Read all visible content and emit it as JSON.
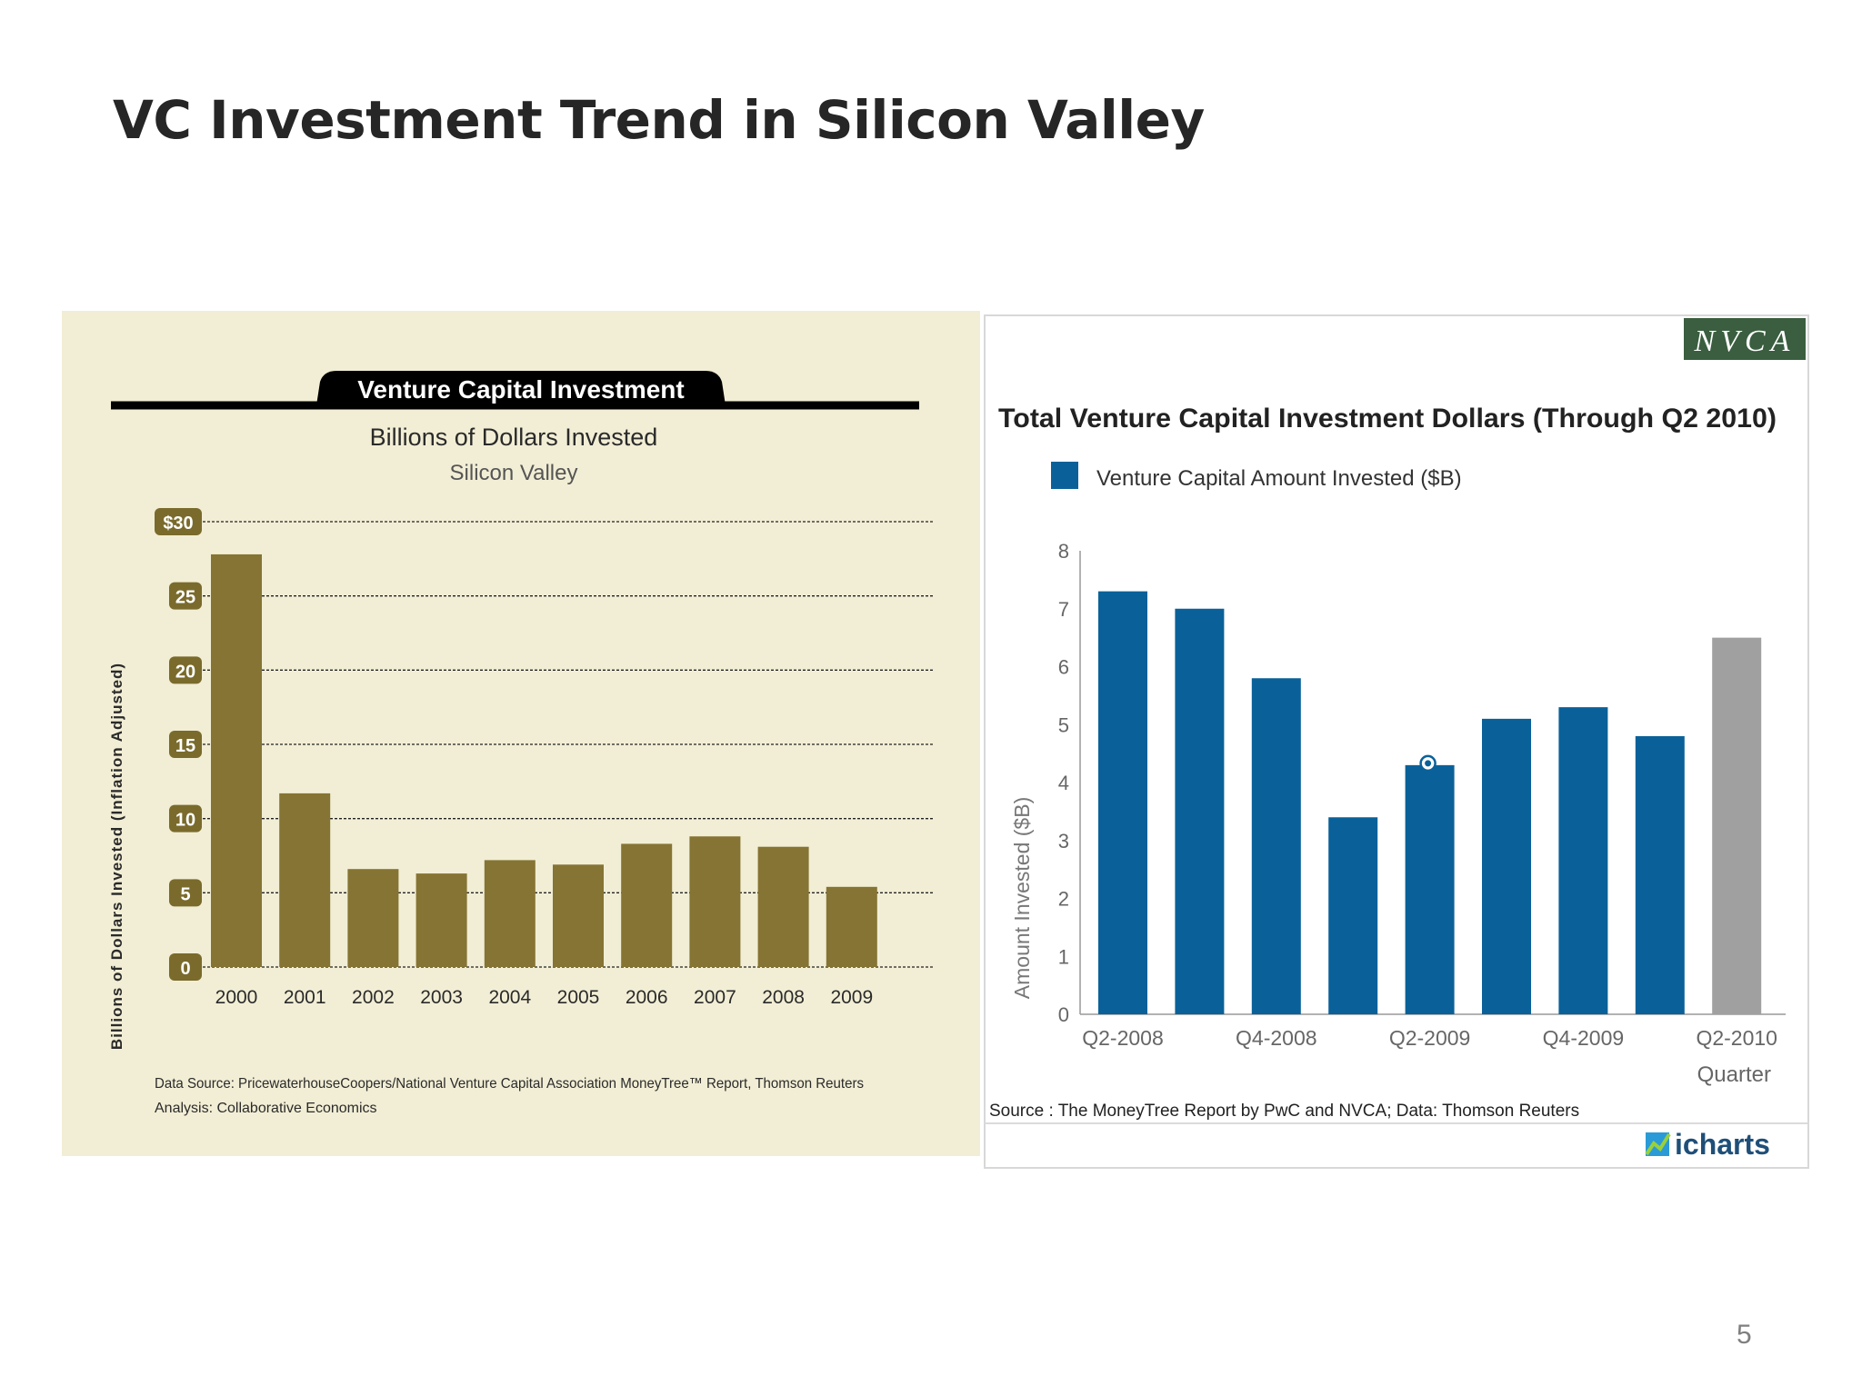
{
  "slide": {
    "title": "VC Investment Trend in Silicon Valley",
    "page_number": "5"
  },
  "left_chart_header": {
    "banner": "Venture Capital Investment",
    "subtitle": "Billions of Dollars Invested",
    "region": "Silicon Valley",
    "source_line1": "Data Source: PricewaterhouseCoopers/National Venture Capital Association MoneyTree™ Report, Thomson Reuters",
    "source_line2": "Analysis: Collaborative Economics"
  },
  "right_chart_header": {
    "brand": "NVCA",
    "title": "Total Venture Capital Investment Dollars (Through Q2 2010)",
    "legend_label": "Venture Capital Amount Invested ($B)",
    "source": "Source : The MoneyTree Report by PwC and NVCA; Data: Thomson Reuters",
    "logo_text": "icharts"
  },
  "colors": {
    "olive_bar": "#857433",
    "olive_axis_badge": "#7a6b2c",
    "panel_bg": "#f2eed5",
    "blue_bar": "#0a6199",
    "grey_bar": "#a0a0a0",
    "nvca_bg": "#3a5e3f"
  },
  "chart_data": [
    {
      "type": "bar",
      "title": "Venture Capital Investment",
      "subtitle": "Billions of Dollars Invested",
      "ylabel": "Billions of Dollars Invested (Inflation Adjusted)",
      "xlabel": "",
      "categories": [
        "2000",
        "2001",
        "2002",
        "2003",
        "2004",
        "2005",
        "2006",
        "2007",
        "2008",
        "2009"
      ],
      "values": [
        27.8,
        11.7,
        6.6,
        6.3,
        7.2,
        6.9,
        8.3,
        8.8,
        8.1,
        5.4
      ],
      "ylim": [
        0,
        30
      ],
      "yticks": [
        "0",
        "5",
        "10",
        "15",
        "20",
        "25",
        "$30"
      ],
      "grid": true
    },
    {
      "type": "bar",
      "title": "Total Venture Capital Investment Dollars (Through Q2 2010)",
      "ylabel": "Amount Invested ($B)",
      "xlabel": "Quarter",
      "categories": [
        "Q2-2008",
        "Q3-2008",
        "Q4-2008",
        "Q1-2009",
        "Q2-2009",
        "Q3-2009",
        "Q4-2009",
        "Q1-2010",
        "Q2-2010"
      ],
      "tick_labels": [
        "Q2-2008",
        "Q4-2008",
        "Q2-2009",
        "Q4-2009",
        "Q2-2010"
      ],
      "series": [
        {
          "name": "Venture Capital Amount Invested ($B)",
          "values": [
            7.3,
            7.0,
            5.8,
            3.4,
            4.3,
            5.1,
            5.3,
            4.8,
            6.5
          ]
        }
      ],
      "ylim": [
        0,
        8
      ],
      "yticks": [
        "0",
        "1",
        "2",
        "3",
        "4",
        "5",
        "6",
        "7",
        "8"
      ],
      "highlight_last": true,
      "marker_on": "Q2-2009",
      "legend": "top-left",
      "grid": false
    }
  ]
}
